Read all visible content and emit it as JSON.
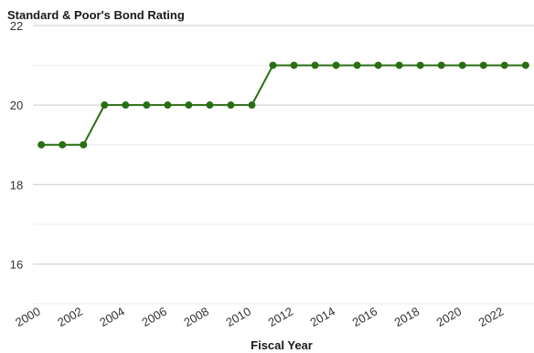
{
  "chart_data": {
    "type": "line",
    "title": "Standard & Poor's Bond Rating",
    "xlabel": "Fiscal Year",
    "ylabel": "",
    "x": [
      2000,
      2001,
      2002,
      2003,
      2004,
      2005,
      2006,
      2007,
      2008,
      2009,
      2010,
      2011,
      2012,
      2013,
      2014,
      2015,
      2016,
      2017,
      2018,
      2019,
      2020,
      2021,
      2022,
      2023
    ],
    "series": [
      {
        "values": [
          19,
          19,
          19,
          20,
          20,
          20,
          20,
          20,
          20,
          20,
          20,
          21,
          21,
          21,
          21,
          21,
          21,
          21,
          21,
          21,
          21,
          21,
          21,
          21
        ],
        "color": "#2a6e14"
      }
    ],
    "xticks": [
      "2000",
      "2002",
      "2004",
      "2006",
      "2008",
      "2010",
      "2012",
      "2014",
      "2016",
      "2018",
      "2020",
      "2022"
    ],
    "yticks": [
      "16",
      "18",
      "20",
      "22"
    ],
    "ylim": [
      15,
      22
    ],
    "xlim": [
      1999.6,
      2023.4
    ],
    "grid": "horizontal",
    "legend": "none",
    "colors": {
      "line": "#2a6e14",
      "grid": "#d9d9d9",
      "text": "#333333"
    }
  }
}
